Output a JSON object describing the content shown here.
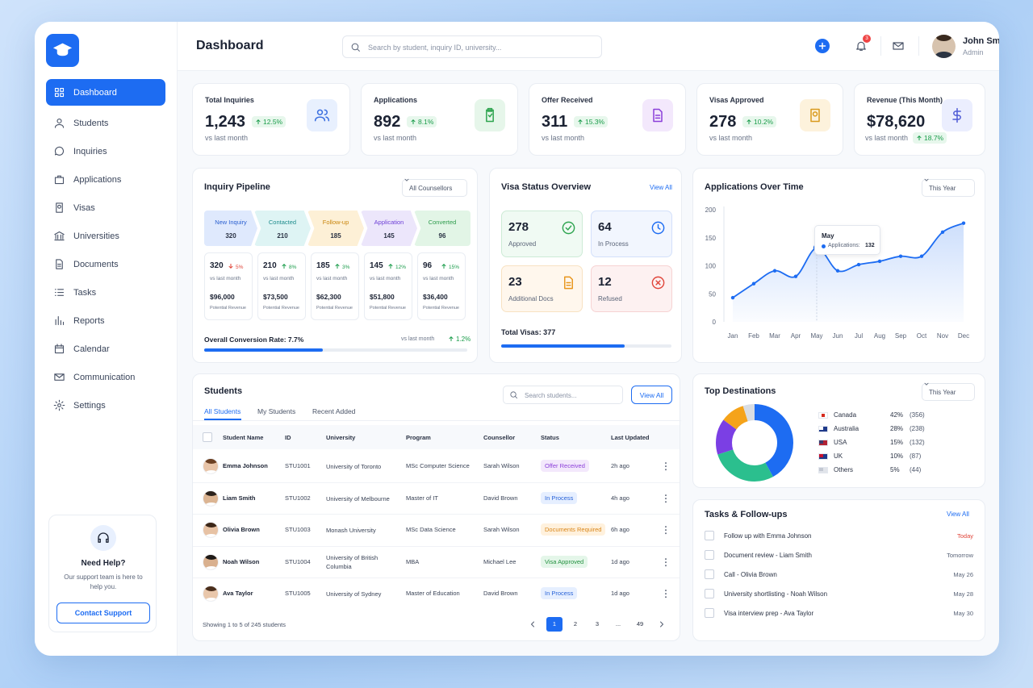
{
  "sidebar": {
    "nav": [
      "Dashboard",
      "Students",
      "Inquiries",
      "Applications",
      "Visas",
      "Universities",
      "Documents",
      "Tasks",
      "Reports",
      "Calendar",
      "Communication",
      "Settings"
    ],
    "help": {
      "title": "Need Help?",
      "text": "Our support team is here to help you.",
      "button": "Contact Support"
    }
  },
  "header": {
    "title": "Dashboard",
    "search": "Search by student, inquiry ID, university...",
    "notifications": "3",
    "user": {
      "name": "John Smith",
      "role": "Admin"
    }
  },
  "stats": [
    {
      "label": "Total Inquiries",
      "value": "1,243",
      "change": "12.5%",
      "note": "vs last month"
    },
    {
      "label": "Applications",
      "value": "892",
      "change": "8.1%",
      "note": "vs last month"
    },
    {
      "label": "Offer Received",
      "value": "311",
      "change": "15.3%",
      "note": "vs last month"
    },
    {
      "label": "Visas Approved",
      "value": "278",
      "change": "10.2%",
      "note": "vs last month"
    },
    {
      "label": "Revenue (This Month)",
      "value": "$78,620",
      "change": "18.7%",
      "note": "vs last month"
    }
  ],
  "pipeline": {
    "title": "Inquiry Pipeline",
    "filter": "All Counsellors",
    "stages": [
      {
        "name": "New Inquiry",
        "count": "320",
        "change": "5%",
        "direction": "down",
        "note": "vs last month",
        "revenue": "$96,000",
        "revenue_label": "Potential Revenue"
      },
      {
        "name": "Contacted",
        "count": "210",
        "change": "8%",
        "direction": "up",
        "note": "vs last month",
        "revenue": "$73,500",
        "revenue_label": "Potential Revenue"
      },
      {
        "name": "Follow-up",
        "count": "185",
        "change": "3%",
        "direction": "up",
        "note": "vs last month",
        "revenue": "$62,300",
        "revenue_label": "Potential Revenue"
      },
      {
        "name": "Application",
        "count": "145",
        "change": "12%",
        "direction": "up",
        "note": "vs last month",
        "revenue": "$51,800",
        "revenue_label": "Potential Revenue"
      },
      {
        "name": "Converted",
        "count": "96",
        "change": "15%",
        "direction": "up",
        "note": "vs last month",
        "revenue": "$36,400",
        "revenue_label": "Potential Revenue"
      }
    ],
    "conversion": "Overall Conversion Rate: 7.7%",
    "conversion_note": "vs last month",
    "conversion_change": "1.2%"
  },
  "visa": {
    "title": "Visa Status Overview",
    "link": "View All",
    "cards": [
      {
        "count": "278",
        "label": "Approved"
      },
      {
        "count": "64",
        "label": "In Process"
      },
      {
        "count": "23",
        "label": "Additional Docs"
      },
      {
        "count": "12",
        "label": "Refused"
      }
    ],
    "total": "Total Visas: 377"
  },
  "applications_over_time": {
    "title": "Applications Over Time",
    "filter": "This Year",
    "chart_data": {
      "type": "line",
      "categories": [
        "Jan",
        "Feb",
        "Mar",
        "Apr",
        "May",
        "Jun",
        "Jul",
        "Aug",
        "Sep",
        "Oct",
        "Nov",
        "Dec"
      ],
      "series": [
        {
          "name": "Applications:",
          "color": "#1d6cf2",
          "values": [
            43,
            68,
            91,
            81,
            132,
            91,
            102,
            108,
            117,
            117,
            160,
            176
          ]
        }
      ],
      "ylim": [
        0,
        200
      ],
      "yticks": [
        0,
        50,
        100,
        150,
        200
      ],
      "grid": false,
      "tooltip_index": 4
    }
  },
  "students": {
    "title": "Students",
    "tabs": [
      "All Students",
      "My Students",
      "Recent Added"
    ],
    "search": "Search students...",
    "button": "View All",
    "columns": [
      "Student Name",
      "ID",
      "University",
      "Program",
      "Counsellor",
      "Status",
      "Last Updated"
    ],
    "rows": [
      {
        "name": "Emma Johnson",
        "id": "STU1001",
        "university": "University of Toronto",
        "program": "MSc Computer Science",
        "counsellor": "Sarah Wilson",
        "status": "Offer Received",
        "tone": "purple",
        "updated": "2h ago"
      },
      {
        "name": "Liam Smith",
        "id": "STU1002",
        "university": "University of Melbourne",
        "program": "Master of IT",
        "counsellor": "David Brown",
        "status": "In Process",
        "tone": "blue",
        "updated": "4h ago"
      },
      {
        "name": "Olivia Brown",
        "id": "STU1003",
        "university": "Monash University",
        "program": "MSc Data Science",
        "counsellor": "Sarah Wilson",
        "status": "Documents Required",
        "tone": "orange",
        "updated": "6h ago"
      },
      {
        "name": "Noah Wilson",
        "id": "STU1004",
        "university": "University of British Columbia",
        "program": "MBA",
        "counsellor": "Michael Lee",
        "status": "Visa Approved",
        "tone": "green",
        "updated": "1d ago"
      },
      {
        "name": "Ava Taylor",
        "id": "STU1005",
        "university": "University of Sydney",
        "program": "Master of Education",
        "counsellor": "David Brown",
        "status": "In Process",
        "tone": "blue",
        "updated": "1d ago"
      }
    ],
    "footer": "Showing 1 to 5 of 245 students",
    "pages": [
      "1",
      "2",
      "3",
      "...",
      "49"
    ]
  },
  "destinations": {
    "title": "Top Destinations",
    "filter": "This Year",
    "chart_data": {
      "type": "pie",
      "categories": [
        "Canada",
        "Australia",
        "USA",
        "UK",
        "Others"
      ],
      "values": [
        42,
        28,
        15,
        10,
        5
      ],
      "value_labels": [
        "42%",
        "28%",
        "15%",
        "10%",
        "5%"
      ],
      "counts": [
        "(356)",
        "(238)",
        "(132)",
        "(87)",
        "(44)"
      ],
      "colors": [
        "#1d6cf2",
        "#2bbf8e",
        "#7b3fe4",
        "#f5a31a",
        "#d9dde3"
      ]
    }
  },
  "tasks": {
    "title": "Tasks & Follow-ups",
    "link": "View All",
    "items": [
      {
        "text": "Follow up with Emma Johnson",
        "due": "Today",
        "urgent": true
      },
      {
        "text": "Document review - Liam Smith",
        "due": "Tomorrow",
        "urgent": false
      },
      {
        "text": "Call - Olivia Brown",
        "due": "May 26",
        "urgent": false
      },
      {
        "text": "University shortlisting - Noah Wilson",
        "due": "May 28",
        "urgent": false
      },
      {
        "text": "Visa interview prep - Ava Taylor",
        "due": "May 30",
        "urgent": false
      }
    ]
  }
}
